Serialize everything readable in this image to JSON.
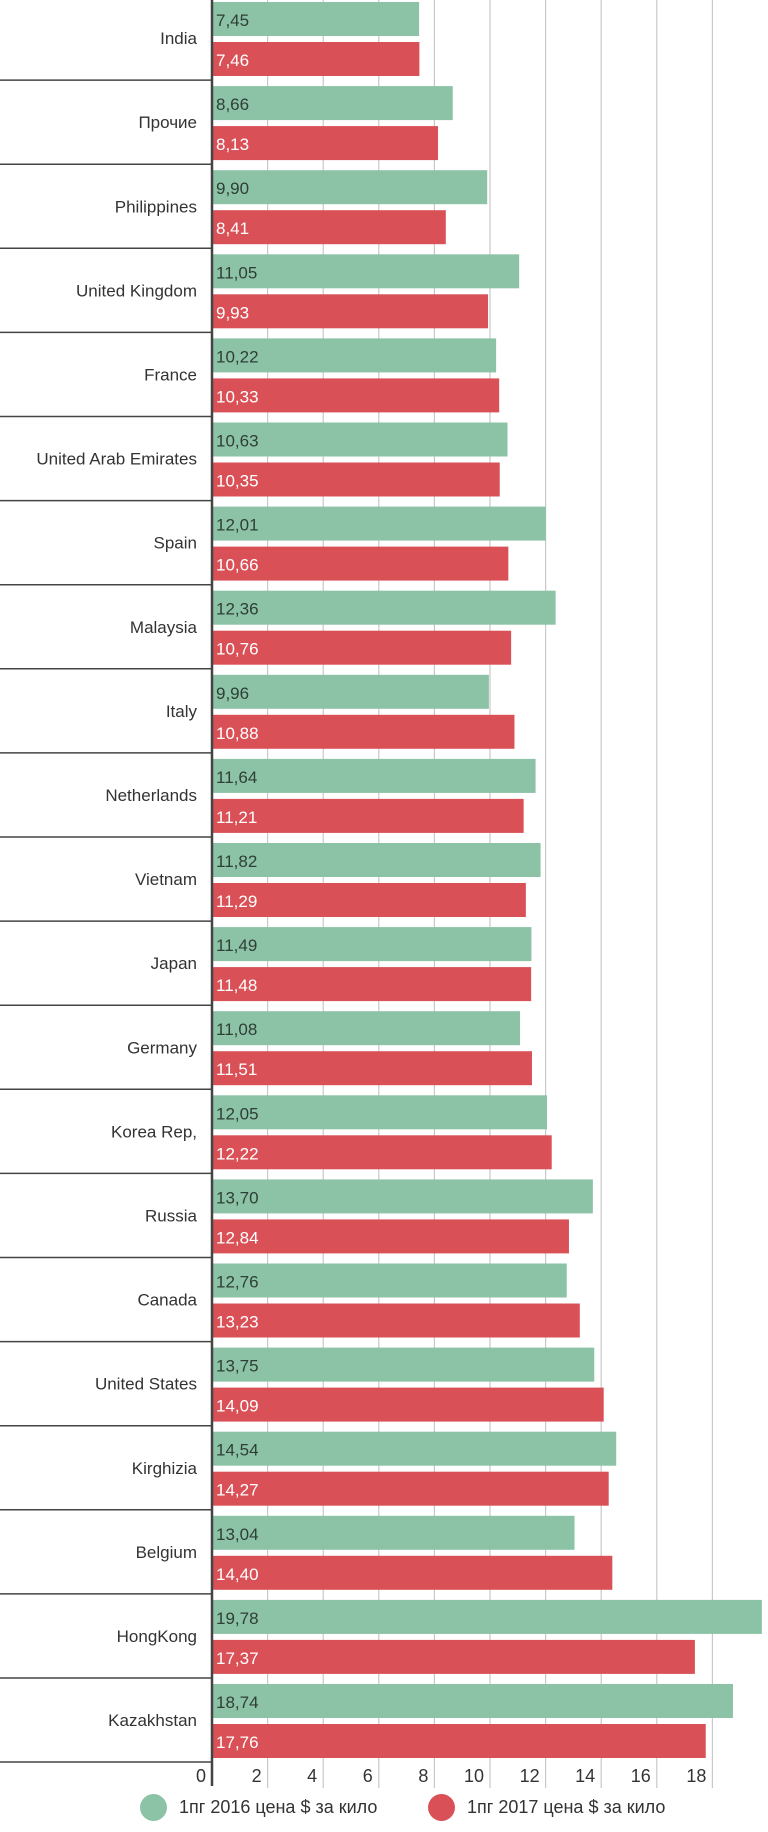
{
  "chart_data": {
    "type": "bar",
    "orientation": "horizontal",
    "title": "",
    "xlabel": "",
    "ylabel": "",
    "xlim": [
      0,
      20
    ],
    "xticks": [
      "0",
      "2",
      "4",
      "6",
      "8",
      "10",
      "12",
      "14",
      "16",
      "18"
    ],
    "categories": [
      "India",
      "Прочие",
      "Philippines",
      "United Kingdom",
      "France",
      "United Arab Emirates",
      "Spain",
      "Malaysia",
      "Italy",
      "Netherlands",
      "Vietnam",
      "Japan",
      "Germany",
      "Korea Rep,",
      "Russia",
      "Canada",
      "United States",
      "Kirghizia",
      "Belgium",
      "HongKong",
      "Kazakhstan"
    ],
    "series": [
      {
        "name": "1пг 2016 цена $ за кило",
        "color": "#8cc3a6",
        "labels": [
          "7,45",
          "8,66",
          "9,90",
          "11,05",
          "10,22",
          "10,63",
          "12,01",
          "12,36",
          "9,96",
          "11,64",
          "11,82",
          "11,49",
          "11,08",
          "12,05",
          "13,70",
          "12,76",
          "13,75",
          "14,54",
          "13,04",
          "19,78",
          "18,74"
        ],
        "values": [
          7.45,
          8.66,
          9.9,
          11.05,
          10.22,
          10.63,
          12.01,
          12.36,
          9.96,
          11.64,
          11.82,
          11.49,
          11.08,
          12.05,
          13.7,
          12.76,
          13.75,
          14.54,
          13.04,
          19.78,
          18.74
        ]
      },
      {
        "name": "1пг 2017 цена $ за кило",
        "color": "#d95157",
        "labels": [
          "7,46",
          "8,13",
          "8,41",
          "9,93",
          "10,33",
          "10,35",
          "10,66",
          "10,76",
          "10,88",
          "11,21",
          "11,29",
          "11,48",
          "11,51",
          "12,22",
          "12,84",
          "13,23",
          "14,09",
          "14,27",
          "14,40",
          "17,37",
          "17,76"
        ],
        "values": [
          7.46,
          8.13,
          8.41,
          9.93,
          10.33,
          10.35,
          10.66,
          10.76,
          10.88,
          11.21,
          11.29,
          11.48,
          11.51,
          12.22,
          12.84,
          13.23,
          14.09,
          14.27,
          14.4,
          17.37,
          17.76
        ]
      }
    ],
    "grid": true,
    "legend": "bottom"
  }
}
